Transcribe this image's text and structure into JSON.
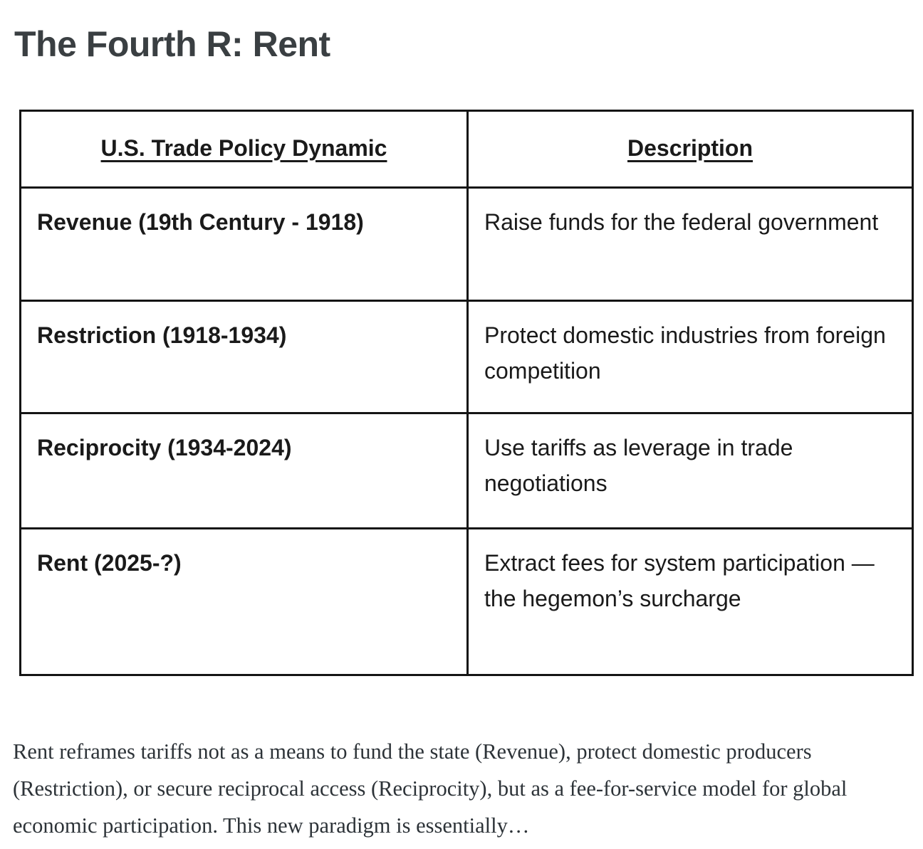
{
  "page": {
    "title": "The Fourth R: Rent"
  },
  "table": {
    "headers": [
      {
        "label": "U.S. Trade Policy Dynamic"
      },
      {
        "label": "Description"
      }
    ],
    "rows": [
      {
        "dynamic": "Revenue (19th Century - 1918)",
        "description": "Raise funds for the federal government"
      },
      {
        "dynamic": "Restriction (1918-1934)",
        "description": "Protect domestic industries from foreign competition"
      },
      {
        "dynamic": "Reciprocity (1934-2024)",
        "description": "Use tariffs as leverage in trade negotiations"
      },
      {
        "dynamic": "Rent (2025-?)",
        "description": "Extract fees for system participation — the hegemon’s surcharge"
      }
    ]
  },
  "paragraph": {
    "text": "Rent reframes tariffs not as a means to fund the state (Revenue), protect domestic producers (Restriction), or secure reciprocal access (Reciprocity), but as a fee-for-service model for global economic participation. This new paradigm is essentially…"
  }
}
